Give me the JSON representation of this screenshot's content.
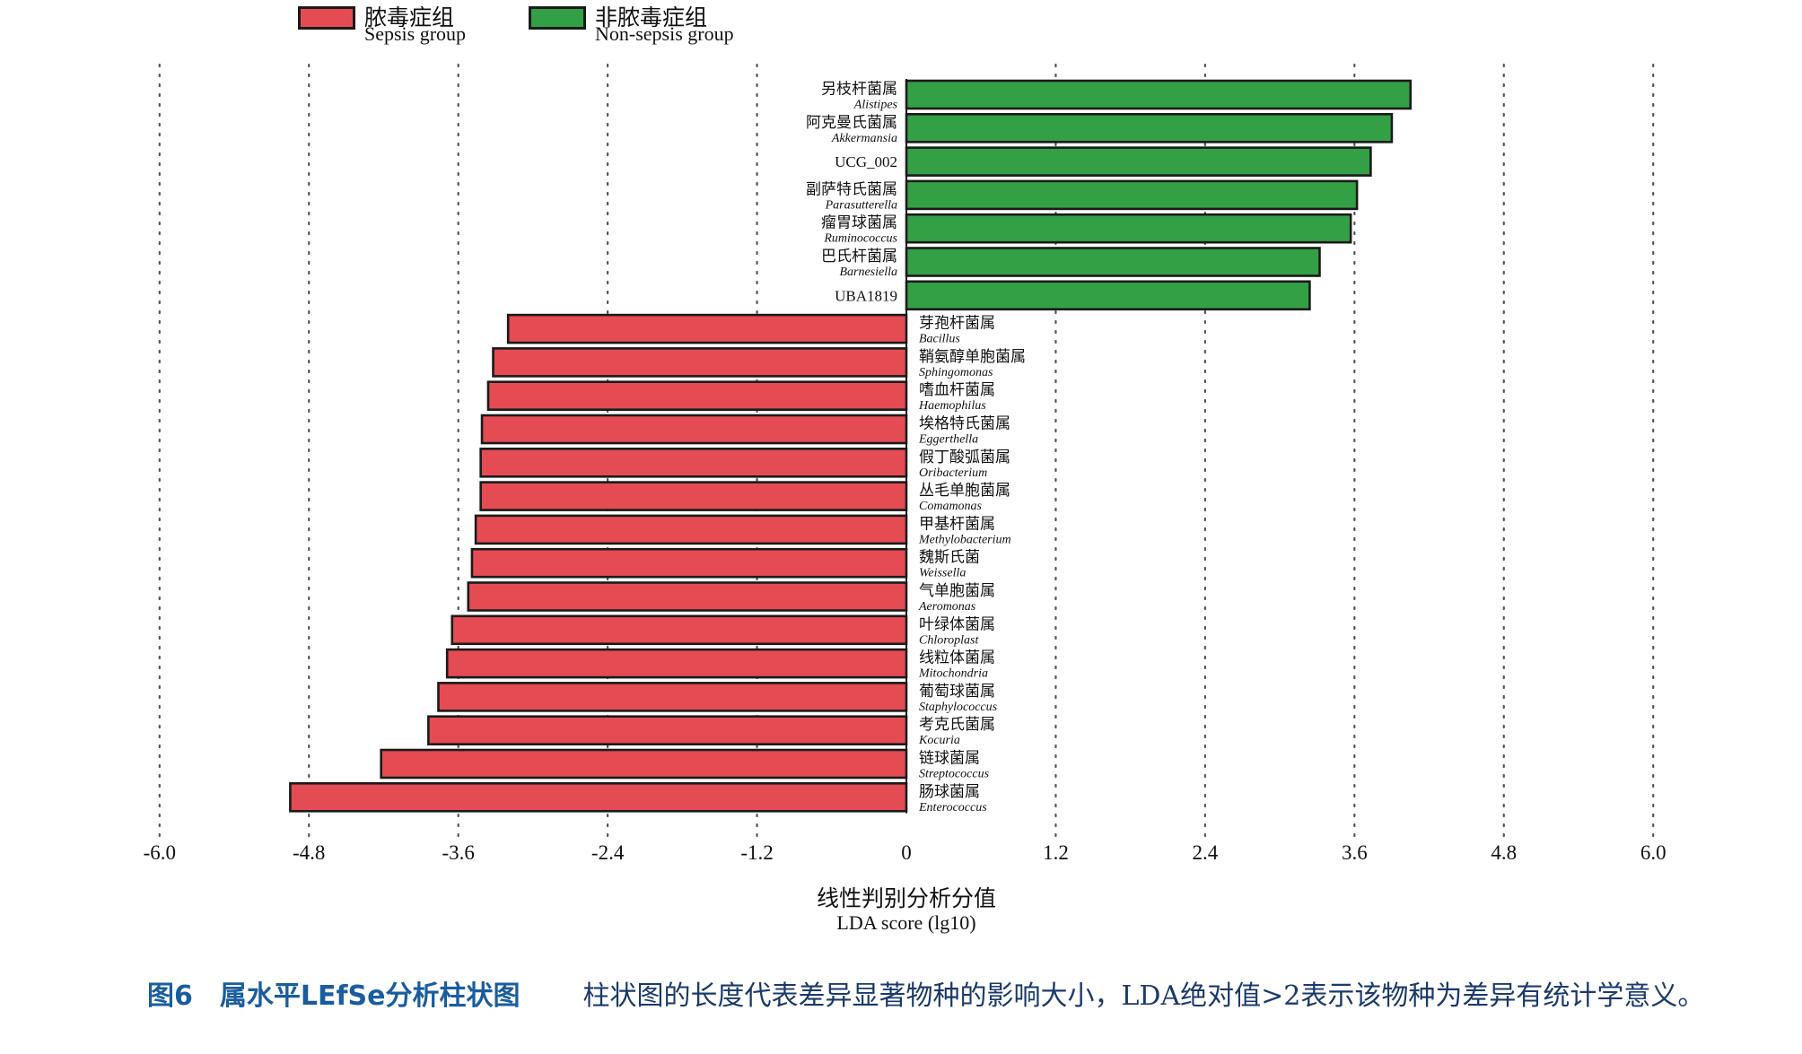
{
  "legend": [
    {
      "zh": "脓毒症组",
      "en": "Sepsis group",
      "color": "#e54b53"
    },
    {
      "zh": "非脓毒症组",
      "en": "Non-sepsis group",
      "color": "#33a046"
    }
  ],
  "chart_data": {
    "type": "bar",
    "orientation": "horizontal",
    "xlim": [
      -6.0,
      6.0
    ],
    "xticks": [
      "-6.0",
      "-4.8",
      "-3.6",
      "-2.4",
      "-1.2",
      "0",
      "1.2",
      "2.4",
      "3.6",
      "4.8",
      "6.0"
    ],
    "xlabel_zh": "线性判别分析分值",
    "xlabel_en": "LDA score (lg10)",
    "grid": "vertical dotted",
    "bars": [
      {
        "zh": "另枝杆菌属",
        "en": "Alistipes",
        "italic": true,
        "value": 4.05,
        "group": "Non-sepsis group"
      },
      {
        "zh": "阿克曼氏菌属",
        "en": "Akkermansia",
        "italic": true,
        "value": 3.9,
        "group": "Non-sepsis group"
      },
      {
        "zh": "",
        "en": "UCG_002",
        "italic": false,
        "value": 3.73,
        "group": "Non-sepsis group"
      },
      {
        "zh": "副萨特氏菌属",
        "en": "Parasutterella",
        "italic": true,
        "value": 3.62,
        "group": "Non-sepsis group"
      },
      {
        "zh": "瘤胃球菌属",
        "en": "Ruminococcus",
        "italic": true,
        "value": 3.57,
        "group": "Non-sepsis group"
      },
      {
        "zh": "巴氏杆菌属",
        "en": "Barnesiella",
        "italic": true,
        "value": 3.32,
        "group": "Non-sepsis group"
      },
      {
        "zh": "",
        "en": "UBA1819",
        "italic": false,
        "value": 3.24,
        "group": "Non-sepsis group"
      },
      {
        "zh": "芽孢杆菌属",
        "en": "Bacillus",
        "italic": true,
        "value": -3.2,
        "group": "Sepsis group"
      },
      {
        "zh": "鞘氨醇单胞菌属",
        "en": "Sphingomonas",
        "italic": true,
        "value": -3.32,
        "group": "Sepsis group"
      },
      {
        "zh": "嗜血杆菌属",
        "en": "Haemophilus",
        "italic": true,
        "value": -3.36,
        "group": "Sepsis group"
      },
      {
        "zh": "埃格特氏菌属",
        "en": "Eggerthella",
        "italic": true,
        "value": -3.41,
        "group": "Sepsis group"
      },
      {
        "zh": "假丁酸弧菌属",
        "en": "Oribacterium",
        "italic": true,
        "value": -3.42,
        "group": "Sepsis group"
      },
      {
        "zh": "丛毛单胞菌属",
        "en": "Comamonas",
        "italic": true,
        "value": -3.42,
        "group": "Sepsis group"
      },
      {
        "zh": "甲基杆菌属",
        "en": "Methylobacterium",
        "italic": true,
        "value": -3.46,
        "group": "Sepsis group"
      },
      {
        "zh": "魏斯氏菌",
        "en": "Weissella",
        "italic": true,
        "value": -3.49,
        "group": "Sepsis group"
      },
      {
        "zh": "气单胞菌属",
        "en": "Aeromonas",
        "italic": true,
        "value": -3.52,
        "group": "Sepsis group"
      },
      {
        "zh": "叶绿体菌属",
        "en": "Chloroplast",
        "italic": true,
        "value": -3.65,
        "group": "Sepsis group"
      },
      {
        "zh": "线粒体菌属",
        "en": "Mitochondria",
        "italic": true,
        "value": -3.69,
        "group": "Sepsis group"
      },
      {
        "zh": "葡萄球菌属",
        "en": "Staphylococcus",
        "italic": true,
        "value": -3.76,
        "group": "Sepsis group"
      },
      {
        "zh": "考克氏菌属",
        "en": "Kocuria",
        "italic": true,
        "value": -3.84,
        "group": "Sepsis group"
      },
      {
        "zh": "链球菌属",
        "en": "Streptococcus",
        "italic": true,
        "value": -4.22,
        "group": "Sepsis group"
      },
      {
        "zh": "肠球菌属",
        "en": "Enterococcus",
        "italic": true,
        "value": -4.95,
        "group": "Sepsis group"
      }
    ]
  },
  "caption": {
    "figure_label": "图6　属水平LEfSe分析柱状图",
    "text": "柱状图的长度代表差异显著物种的影响大小，LDA绝对值>2表示该物种为差异有统计学意义。"
  }
}
